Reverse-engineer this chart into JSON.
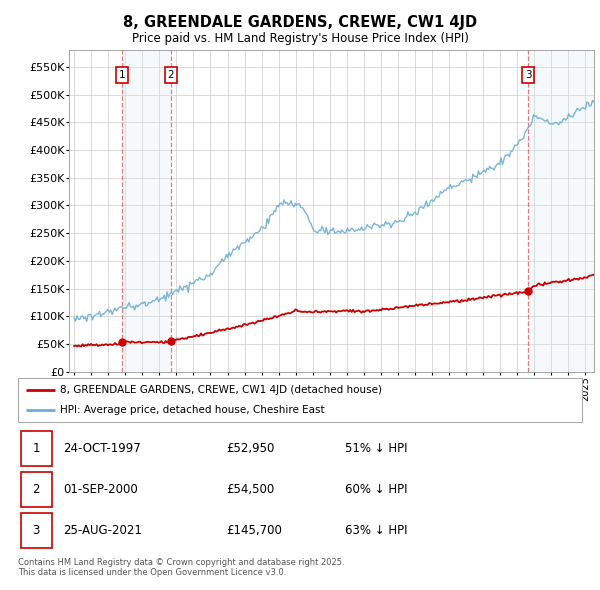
{
  "title": "8, GREENDALE GARDENS, CREWE, CW1 4JD",
  "subtitle": "Price paid vs. HM Land Registry's House Price Index (HPI)",
  "ylabel_ticks": [
    "£0",
    "£50K",
    "£100K",
    "£150K",
    "£200K",
    "£250K",
    "£300K",
    "£350K",
    "£400K",
    "£450K",
    "£500K",
    "£550K"
  ],
  "ytick_values": [
    0,
    50000,
    100000,
    150000,
    200000,
    250000,
    300000,
    350000,
    400000,
    450000,
    500000,
    550000
  ],
  "xmin": 1994.7,
  "xmax": 2025.5,
  "ymin": 0,
  "ymax": 580000,
  "legend1": "8, GREENDALE GARDENS, CREWE, CW1 4JD (detached house)",
  "legend2": "HPI: Average price, detached house, Cheshire East",
  "purchase_dates": [
    1997.81,
    2000.67,
    2021.65
  ],
  "purchase_prices": [
    52950,
    54500,
    145700
  ],
  "purchase_labels": [
    "1",
    "2",
    "3"
  ],
  "table_data": [
    [
      "1",
      "24-OCT-1997",
      "£52,950",
      "51% ↓ HPI"
    ],
    [
      "2",
      "01-SEP-2000",
      "£54,500",
      "60% ↓ HPI"
    ],
    [
      "3",
      "25-AUG-2021",
      "£145,700",
      "63% ↓ HPI"
    ]
  ],
  "footer": "Contains HM Land Registry data © Crown copyright and database right 2025.\nThis data is licensed under the Open Government Licence v3.0.",
  "hpi_color": "#6baed6",
  "price_color": "#cc0000",
  "vline_color": "#dd4444",
  "bg_vline_color": "#dce9f5",
  "label_box_edge": "#cc0000"
}
